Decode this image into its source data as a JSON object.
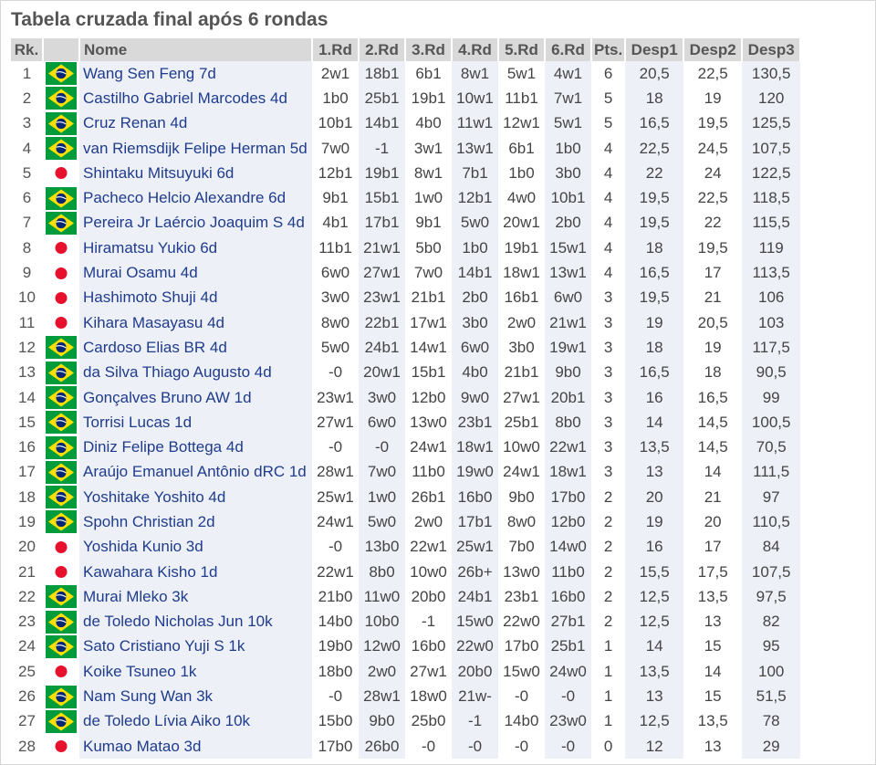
{
  "title": "Tabela cruzada final após 6 rondas",
  "headers": [
    "Rk.",
    "",
    "Nome",
    "1.Rd",
    "2.Rd",
    "3.Rd",
    "4.Rd",
    "5.Rd",
    "6.Rd",
    "Pts.",
    "Desp1",
    "Desp2",
    "Desp3"
  ],
  "colors": {
    "header_bg": "#d9d9d9",
    "name_text": "#1f3c8c",
    "row_tint": "#eef0f7",
    "brazil_green": "#009c3b",
    "brazil_yellow": "#ffdf00",
    "brazil_blue": "#002776",
    "japan_red": "#e8112d"
  },
  "rows": [
    {
      "rk": "1",
      "flag": "brazil",
      "name": "Wang Sen Feng 7d",
      "r": [
        "2w1",
        "18b1",
        "6b1",
        "8w1",
        "5w1",
        "4w1"
      ],
      "pts": "6",
      "d1": "20,5",
      "d2": "22,5",
      "d3": "130,5"
    },
    {
      "rk": "2",
      "flag": "brazil",
      "name": "Castilho Gabriel Marcodes 4d",
      "r": [
        "1b0",
        "25b1",
        "19b1",
        "10w1",
        "11b1",
        "7w1"
      ],
      "pts": "5",
      "d1": "18",
      "d2": "19",
      "d3": "120"
    },
    {
      "rk": "3",
      "flag": "brazil",
      "name": "Cruz Renan 4d",
      "r": [
        "10b1",
        "14b1",
        "4b0",
        "11w1",
        "12w1",
        "5w1"
      ],
      "pts": "5",
      "d1": "16,5",
      "d2": "19,5",
      "d3": "125,5"
    },
    {
      "rk": "4",
      "flag": "brazil",
      "name": "van Riemsdijk Felipe Herman 5d",
      "r": [
        "7w0",
        "-1",
        "3w1",
        "13w1",
        "6b1",
        "1b0"
      ],
      "pts": "4",
      "d1": "22,5",
      "d2": "24,5",
      "d3": "107,5"
    },
    {
      "rk": "5",
      "flag": "japan",
      "name": "Shintaku Mitsuyuki 6d",
      "r": [
        "12b1",
        "19b1",
        "8w1",
        "7b1",
        "1b0",
        "3b0"
      ],
      "pts": "4",
      "d1": "22",
      "d2": "24",
      "d3": "122,5"
    },
    {
      "rk": "6",
      "flag": "brazil",
      "name": "Pacheco Helcio Alexandre 6d",
      "r": [
        "9b1",
        "15b1",
        "1w0",
        "12b1",
        "4w0",
        "10b1"
      ],
      "pts": "4",
      "d1": "19,5",
      "d2": "22,5",
      "d3": "118,5"
    },
    {
      "rk": "7",
      "flag": "brazil",
      "name": "Pereira Jr Laércio Joaquim S 4d",
      "r": [
        "4b1",
        "17b1",
        "9b1",
        "5w0",
        "20w1",
        "2b0"
      ],
      "pts": "4",
      "d1": "19,5",
      "d2": "22",
      "d3": "115,5"
    },
    {
      "rk": "8",
      "flag": "japan",
      "name": "Hiramatsu Yukio 6d",
      "r": [
        "11b1",
        "21w1",
        "5b0",
        "1b0",
        "19b1",
        "15w1"
      ],
      "pts": "4",
      "d1": "18",
      "d2": "19,5",
      "d3": "119"
    },
    {
      "rk": "9",
      "flag": "japan",
      "name": "Murai Osamu 4d",
      "r": [
        "6w0",
        "27w1",
        "7w0",
        "14b1",
        "18w1",
        "13w1"
      ],
      "pts": "4",
      "d1": "16,5",
      "d2": "17",
      "d3": "113,5"
    },
    {
      "rk": "10",
      "flag": "japan",
      "name": "Hashimoto Shuji 4d",
      "r": [
        "3w0",
        "23w1",
        "21b1",
        "2b0",
        "16b1",
        "6w0"
      ],
      "pts": "3",
      "d1": "19,5",
      "d2": "21",
      "d3": "106"
    },
    {
      "rk": "11",
      "flag": "japan",
      "name": "Kihara Masayasu 4d",
      "r": [
        "8w0",
        "22b1",
        "17w1",
        "3b0",
        "2w0",
        "21w1"
      ],
      "pts": "3",
      "d1": "19",
      "d2": "20,5",
      "d3": "103"
    },
    {
      "rk": "12",
      "flag": "brazil",
      "name": "Cardoso Elias BR 4d",
      "r": [
        "5w0",
        "24b1",
        "14w1",
        "6w0",
        "3b0",
        "19w1"
      ],
      "pts": "3",
      "d1": "18",
      "d2": "19",
      "d3": "117,5"
    },
    {
      "rk": "13",
      "flag": "brazil",
      "name": "da Silva Thiago Augusto 4d",
      "r": [
        "-0",
        "20w1",
        "15b1",
        "4b0",
        "21b1",
        "9b0"
      ],
      "pts": "3",
      "d1": "16,5",
      "d2": "18",
      "d3": "90,5"
    },
    {
      "rk": "14",
      "flag": "brazil",
      "name": "Gonçalves Bruno AW 1d",
      "r": [
        "23w1",
        "3w0",
        "12b0",
        "9w0",
        "27w1",
        "20b1"
      ],
      "pts": "3",
      "d1": "16",
      "d2": "16,5",
      "d3": "99"
    },
    {
      "rk": "15",
      "flag": "brazil",
      "name": "Torrisi Lucas 1d",
      "r": [
        "27w1",
        "6w0",
        "13w0",
        "23b1",
        "25b1",
        "8b0"
      ],
      "pts": "3",
      "d1": "14",
      "d2": "14,5",
      "d3": "100,5"
    },
    {
      "rk": "16",
      "flag": "brazil",
      "name": "Diniz Felipe Bottega 4d",
      "r": [
        "-0",
        "-0",
        "24w1",
        "18w1",
        "10w0",
        "22w1"
      ],
      "pts": "3",
      "d1": "13,5",
      "d2": "14,5",
      "d3": "70,5"
    },
    {
      "rk": "17",
      "flag": "brazil",
      "name": "Araújo Emanuel Antônio dRC 1d",
      "r": [
        "28w1",
        "7w0",
        "11b0",
        "19w0",
        "24w1",
        "18w1"
      ],
      "pts": "3",
      "d1": "13",
      "d2": "14",
      "d3": "111,5"
    },
    {
      "rk": "18",
      "flag": "brazil",
      "name": "Yoshitake Yoshito 4d",
      "r": [
        "25w1",
        "1w0",
        "26b1",
        "16b0",
        "9b0",
        "17b0"
      ],
      "pts": "2",
      "d1": "20",
      "d2": "21",
      "d3": "97"
    },
    {
      "rk": "19",
      "flag": "brazil",
      "name": "Spohn Christian 2d",
      "r": [
        "24w1",
        "5w0",
        "2w0",
        "17b1",
        "8w0",
        "12b0"
      ],
      "pts": "2",
      "d1": "19",
      "d2": "20",
      "d3": "110,5"
    },
    {
      "rk": "20",
      "flag": "japan",
      "name": "Yoshida Kunio 3d",
      "r": [
        "-0",
        "13b0",
        "22w1",
        "25w1",
        "7b0",
        "14w0"
      ],
      "pts": "2",
      "d1": "16",
      "d2": "17",
      "d3": "84"
    },
    {
      "rk": "21",
      "flag": "japan",
      "name": "Kawahara Kisho 1d",
      "r": [
        "22w1",
        "8b0",
        "10w0",
        "26b+",
        "13w0",
        "11b0"
      ],
      "pts": "2",
      "d1": "15,5",
      "d2": "17,5",
      "d3": "107,5"
    },
    {
      "rk": "22",
      "flag": "brazil",
      "name": "Murai Mleko 3k",
      "r": [
        "21b0",
        "11w0",
        "20b0",
        "24b1",
        "23b1",
        "16b0"
      ],
      "pts": "2",
      "d1": "12,5",
      "d2": "13,5",
      "d3": "97,5"
    },
    {
      "rk": "23",
      "flag": "brazil",
      "name": "de Toledo Nicholas Jun 10k",
      "r": [
        "14b0",
        "10b0",
        "-1",
        "15w0",
        "22w0",
        "27b1"
      ],
      "pts": "2",
      "d1": "12,5",
      "d2": "13",
      "d3": "82"
    },
    {
      "rk": "24",
      "flag": "brazil",
      "name": "Sato Cristiano Yuji S 1k",
      "r": [
        "19b0",
        "12w0",
        "16b0",
        "22w0",
        "17b0",
        "25b1"
      ],
      "pts": "1",
      "d1": "14",
      "d2": "15",
      "d3": "95"
    },
    {
      "rk": "25",
      "flag": "japan",
      "name": "Koike Tsuneo 1k",
      "r": [
        "18b0",
        "2w0",
        "27w1",
        "20b0",
        "15w0",
        "24w0"
      ],
      "pts": "1",
      "d1": "13,5",
      "d2": "14",
      "d3": "100"
    },
    {
      "rk": "26",
      "flag": "brazil",
      "name": "Nam Sung Wan 3k",
      "r": [
        "-0",
        "28w1",
        "18w0",
        "21w-",
        "-0",
        "-0"
      ],
      "pts": "1",
      "d1": "13",
      "d2": "15",
      "d3": "51,5"
    },
    {
      "rk": "27",
      "flag": "brazil",
      "name": "de Toledo Lívia Aiko 10k",
      "r": [
        "15b0",
        "9b0",
        "25b0",
        "-1",
        "14b0",
        "23w0"
      ],
      "pts": "1",
      "d1": "12,5",
      "d2": "13,5",
      "d3": "78"
    },
    {
      "rk": "28",
      "flag": "japan",
      "name": "Kumao Matao 3d",
      "r": [
        "17b0",
        "26b0",
        "-0",
        "-0",
        "-0",
        "-0"
      ],
      "pts": "0",
      "d1": "12",
      "d2": "13",
      "d3": "29"
    }
  ]
}
